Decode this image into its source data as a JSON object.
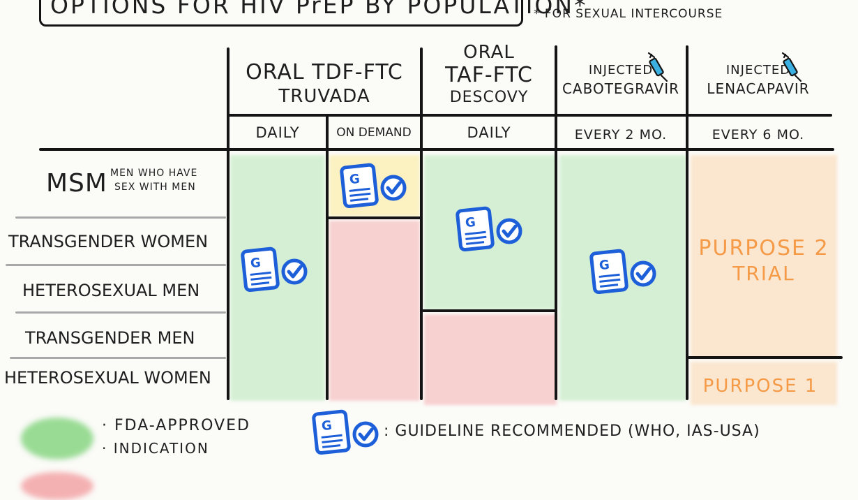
{
  "title": "OPTIONS FOR HIV PrEP BY POPULATION*",
  "footnote": "* FOR SEXUAL INTERCOURSE",
  "columns": [
    {
      "line1": "ORAL TDF-FTC",
      "line2": "TRUVADA"
    },
    {
      "line1": "ORAL",
      "line1b": "TAF-FTC",
      "line2": "DESCOVY"
    },
    {
      "line1": "INJECTED",
      "line2": "CABOTEGRAVIR"
    },
    {
      "line1": "INJECTED",
      "line2": "LENACAPAVIR"
    }
  ],
  "frequencies": [
    "DAILY",
    "ON DEMAND",
    "DAILY",
    "EVERY 2 MO.",
    "EVERY 6 MO."
  ],
  "rows": {
    "msm": "MSM",
    "msm_sub1": "MEN WHO HAVE",
    "msm_sub2": "SEX WITH MEN",
    "trans_women": "TRANSGENDER WOMEN",
    "hetero_men": "HETEROSEXUAL MEN",
    "trans_men": "TRANSGENDER MEN",
    "hetero_women": "HETEROSEXUAL WOMEN"
  },
  "trial_labels": {
    "purpose2_line1": "PURPOSE 2",
    "purpose2_line2": "TRIAL",
    "purpose1": "PURPOSE 1"
  },
  "legend": {
    "fda_line1": "· FDA-APPROVED",
    "fda_line2": "· INDICATION",
    "guideline": ": GUIDELINE RECOMMENDED (WHO, IAS-USA)"
  },
  "icons": {
    "guideline_doc": "document-g-icon",
    "check": "check-circle-icon",
    "syringe": "syringe-icon"
  },
  "colors": {
    "fda_approved": "#cfeecf",
    "not_approved": "#f7c9ca",
    "partial": "#fbf0b8",
    "trial": "#fbe3c8",
    "icon_blue": "#1d5fd8",
    "trial_text": "#f59a46"
  }
}
